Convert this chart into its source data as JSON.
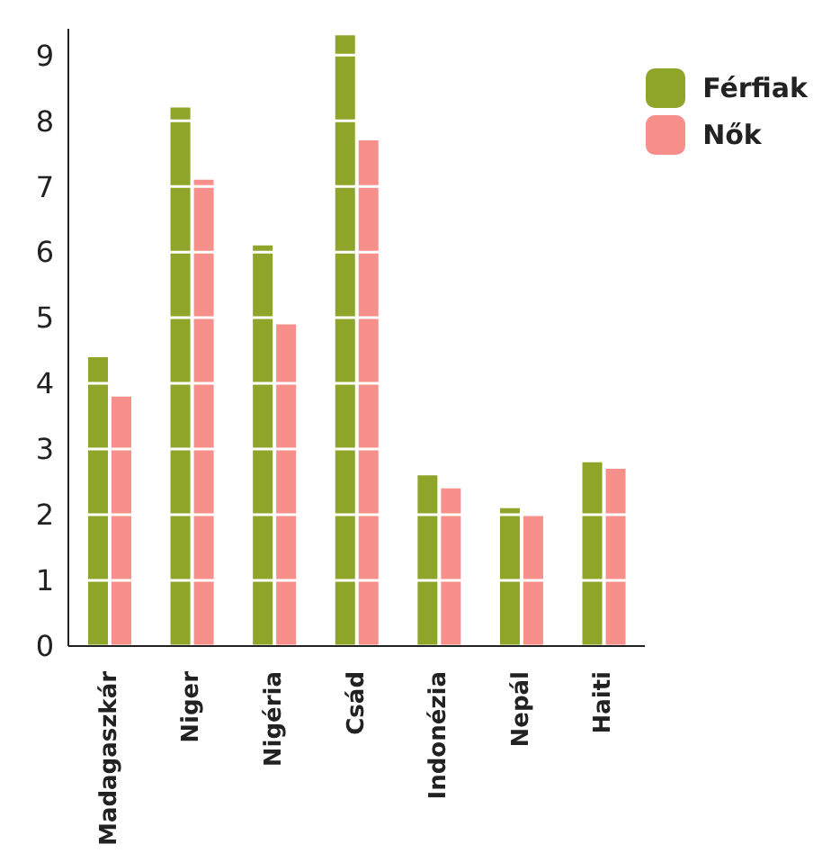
{
  "chart_data": {
    "type": "bar",
    "categories": [
      "Madagaszkár",
      "Niger",
      "Nigéria",
      "Csád",
      "Indonézia",
      "Nepál",
      "Haiti"
    ],
    "series": [
      {
        "name": "Férfiak",
        "color": "#8fa52a",
        "values": [
          4.4,
          8.2,
          6.1,
          9.3,
          2.6,
          2.1,
          2.8
        ]
      },
      {
        "name": "Nők",
        "color": "#f78f8b",
        "values": [
          3.8,
          7.1,
          4.9,
          7.7,
          2.4,
          2.0,
          2.7
        ]
      }
    ],
    "ylim": [
      0,
      9.4
    ],
    "yticks": [
      0,
      1,
      2,
      3,
      4,
      5,
      6,
      7,
      8,
      9
    ],
    "grid": "y",
    "legend": "top right"
  }
}
